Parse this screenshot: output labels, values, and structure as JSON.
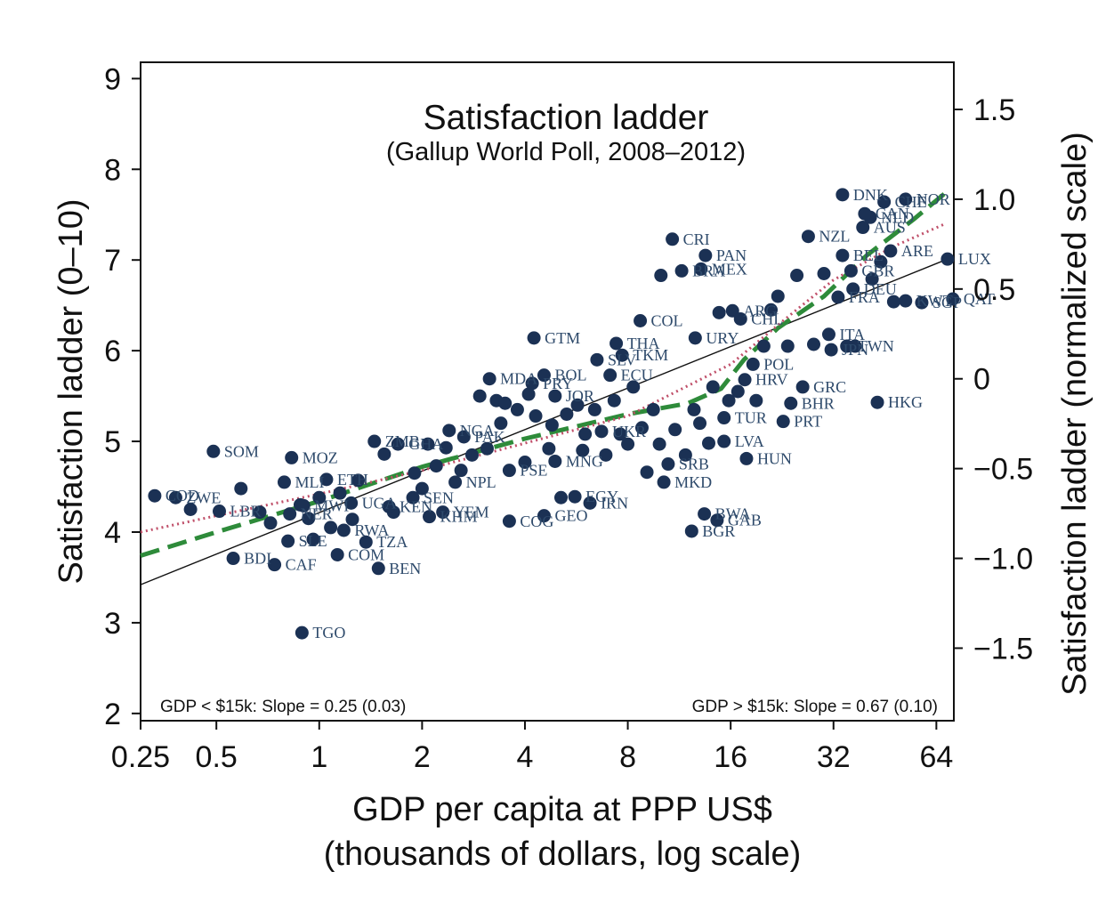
{
  "chart_data": {
    "type": "scatter",
    "title": "Satisfaction ladder",
    "subtitle": "(Gallup World Poll, 2008–2012)",
    "xlabel": "GDP per capita at PPP US$",
    "xlabel2": "(thousands of dollars, log scale)",
    "ylabel": "Satisfaction ladder (0–10)",
    "y2label": "Satisfaction ladder (normalized scale)",
    "x_scale": "log2",
    "xlim": [
      0.3,
      72
    ],
    "ylim": [
      1.92,
      9.18
    ],
    "x_ticks": [
      {
        "value": 0.25,
        "label": "0.25"
      },
      {
        "value": 0.5,
        "label": "0.5"
      },
      {
        "value": 1,
        "label": "1"
      },
      {
        "value": 2,
        "label": "2"
      },
      {
        "value": 4,
        "label": "4"
      },
      {
        "value": 8,
        "label": "8"
      },
      {
        "value": 16,
        "label": "16"
      },
      {
        "value": 32,
        "label": "32"
      },
      {
        "value": 64,
        "label": "64"
      }
    ],
    "y_ticks": [
      {
        "value": 2,
        "label": "2"
      },
      {
        "value": 3,
        "label": "3"
      },
      {
        "value": 4,
        "label": "4"
      },
      {
        "value": 5,
        "label": "5"
      },
      {
        "value": 6,
        "label": "6"
      },
      {
        "value": 7,
        "label": "7"
      },
      {
        "value": 8,
        "label": "8"
      },
      {
        "value": 9,
        "label": "9"
      }
    ],
    "y2_ticks": [
      {
        "ladder": 2.72,
        "label": "−1.5"
      },
      {
        "ladder": 3.71,
        "label": "−1.0"
      },
      {
        "ladder": 4.7,
        "label": "−0.5"
      },
      {
        "ladder": 5.69,
        "label": "0"
      },
      {
        "ladder": 6.68,
        "label": "0.5"
      },
      {
        "ladder": 7.67,
        "label": "1.0"
      },
      {
        "ladder": 8.66,
        "label": "1.5"
      }
    ],
    "grid": false,
    "legend": "none",
    "colors": {
      "points": "#1b3154",
      "labels": "#2e4a6b",
      "fit_linear": "#111111",
      "fit_dashed": "#2e8b3a",
      "fit_dotted": "#c0506a"
    },
    "annotations": [
      {
        "text": "GDP < $15k: Slope = 0.25 (0.03)",
        "position": "bottom-left"
      },
      {
        "text": "GDP > $15k: Slope = 0.67 (0.10)",
        "position": "bottom-right"
      }
    ],
    "labeled_points": [
      {
        "label": "COD",
        "x": 0.33,
        "y": 4.4
      },
      {
        "label": "ZWE",
        "x": 0.38,
        "y": 4.38
      },
      {
        "label": "SOM",
        "x": 0.49,
        "y": 4.89
      },
      {
        "label": "LBR",
        "x": 0.51,
        "y": 4.23
      },
      {
        "label": "BDI",
        "x": 0.56,
        "y": 3.71
      },
      {
        "label": "MOZ",
        "x": 0.83,
        "y": 4.82
      },
      {
        "label": "MLI",
        "x": 0.79,
        "y": 4.55
      },
      {
        "label": "ETH",
        "x": 1.05,
        "y": 4.58
      },
      {
        "label": "CAF",
        "x": 0.74,
        "y": 3.64
      },
      {
        "label": "SLE",
        "x": 0.81,
        "y": 3.9
      },
      {
        "label": "COM",
        "x": 1.13,
        "y": 3.75
      },
      {
        "label": "TZA",
        "x": 1.37,
        "y": 3.89
      },
      {
        "label": "BEN",
        "x": 1.49,
        "y": 3.6
      },
      {
        "label": "TGO",
        "x": 0.89,
        "y": 2.89
      },
      {
        "label": "RWA",
        "x": 1.18,
        "y": 4.02
      },
      {
        "label": "NER",
        "x": 0.82,
        "y": 4.2
      },
      {
        "label": "MWI",
        "x": 0.9,
        "y": 4.29
      },
      {
        "label": "UGA",
        "x": 1.24,
        "y": 4.32
      },
      {
        "label": "ZMB",
        "x": 1.45,
        "y": 5.0
      },
      {
        "label": "KEN",
        "x": 1.6,
        "y": 4.28
      },
      {
        "label": "GHA",
        "x": 1.7,
        "y": 4.97
      },
      {
        "label": "NGA",
        "x": 2.4,
        "y": 5.12
      },
      {
        "label": "PAK",
        "x": 2.65,
        "y": 5.05
      },
      {
        "label": "SEN",
        "x": 1.88,
        "y": 4.38
      },
      {
        "label": "YEM",
        "x": 2.3,
        "y": 4.22
      },
      {
        "label": "KHM",
        "x": 2.1,
        "y": 4.17
      },
      {
        "label": "NPL",
        "x": 2.5,
        "y": 4.55
      },
      {
        "label": "MDA",
        "x": 3.15,
        "y": 5.69
      },
      {
        "label": "PSE",
        "x": 3.6,
        "y": 4.68
      },
      {
        "label": "JOR",
        "x": 4.9,
        "y": 5.5
      },
      {
        "label": "BOL",
        "x": 4.55,
        "y": 5.73
      },
      {
        "label": "PRY",
        "x": 4.2,
        "y": 5.64
      },
      {
        "label": "GTM",
        "x": 4.25,
        "y": 6.14
      },
      {
        "label": "MNG",
        "x": 4.9,
        "y": 4.78
      },
      {
        "label": "EGY",
        "x": 5.6,
        "y": 4.39
      },
      {
        "label": "IRN",
        "x": 6.2,
        "y": 4.32
      },
      {
        "label": "GEO",
        "x": 4.55,
        "y": 4.18
      },
      {
        "label": "COG",
        "x": 3.6,
        "y": 4.12
      },
      {
        "label": "THA",
        "x": 7.4,
        "y": 6.08
      },
      {
        "label": "SLV",
        "x": 6.5,
        "y": 5.9
      },
      {
        "label": "TKM",
        "x": 7.7,
        "y": 5.95
      },
      {
        "label": "ECU",
        "x": 7.1,
        "y": 5.73
      },
      {
        "label": "UKR",
        "x": 6.7,
        "y": 5.11
      },
      {
        "label": "COL",
        "x": 8.7,
        "y": 6.33
      },
      {
        "label": "CRI",
        "x": 10.8,
        "y": 7.23
      },
      {
        "label": "PAN",
        "x": 13.5,
        "y": 7.05
      },
      {
        "label": "MEX",
        "x": 13.1,
        "y": 6.9
      },
      {
        "label": "BRA",
        "x": 11.5,
        "y": 6.88
      },
      {
        "label": "URY",
        "x": 12.6,
        "y": 6.14
      },
      {
        "label": "MKD",
        "x": 10.2,
        "y": 4.55
      },
      {
        "label": "SRB",
        "x": 10.5,
        "y": 4.75
      },
      {
        "label": "BWA",
        "x": 13.4,
        "y": 4.2
      },
      {
        "label": "GAB",
        "x": 14.6,
        "y": 4.13
      },
      {
        "label": "BGR",
        "x": 12.3,
        "y": 4.01
      },
      {
        "label": "LVA",
        "x": 15.3,
        "y": 5.0
      },
      {
        "label": "HUN",
        "x": 17.8,
        "y": 4.81
      },
      {
        "label": "TUR",
        "x": 15.3,
        "y": 5.26
      },
      {
        "label": "POL",
        "x": 18.6,
        "y": 5.85
      },
      {
        "label": "HRV",
        "x": 17.6,
        "y": 5.68
      },
      {
        "label": "GRC",
        "x": 26.0,
        "y": 5.6
      },
      {
        "label": "BHR",
        "x": 24.0,
        "y": 5.42
      },
      {
        "label": "PRT",
        "x": 22.8,
        "y": 5.22
      },
      {
        "label": "ARG",
        "x": 16.2,
        "y": 6.44
      },
      {
        "label": "CHL",
        "x": 17.1,
        "y": 6.35
      },
      {
        "label": "ITA",
        "x": 31.0,
        "y": 6.18
      },
      {
        "label": "JPN",
        "x": 31.5,
        "y": 6.01
      },
      {
        "label": "TWN",
        "x": 35.0,
        "y": 6.05
      },
      {
        "label": "HKG",
        "x": 43.0,
        "y": 5.43
      },
      {
        "label": "QAT",
        "x": 71.5,
        "y": 6.57
      },
      {
        "label": "LUX",
        "x": 69.0,
        "y": 7.01
      },
      {
        "label": "SGP",
        "x": 58.0,
        "y": 6.53
      },
      {
        "label": "KWT",
        "x": 52.0,
        "y": 6.55
      },
      {
        "label": "DEU",
        "x": 36.5,
        "y": 6.68
      },
      {
        "label": "FRA",
        "x": 33.0,
        "y": 6.59
      },
      {
        "label": "GBR",
        "x": 36.0,
        "y": 6.88
      },
      {
        "label": "ARE",
        "x": 47.0,
        "y": 7.1
      },
      {
        "label": "BEL",
        "x": 34.0,
        "y": 7.05
      },
      {
        "label": "NZL",
        "x": 27.0,
        "y": 7.26
      },
      {
        "label": "AUS",
        "x": 39.0,
        "y": 7.36
      },
      {
        "label": "NLD",
        "x": 41.0,
        "y": 7.47
      },
      {
        "label": "CAN",
        "x": 39.5,
        "y": 7.51
      },
      {
        "label": "DNK",
        "x": 34.0,
        "y": 7.72
      },
      {
        "label": "NOR",
        "x": 52.0,
        "y": 7.67
      },
      {
        "label": "CHE",
        "x": 45.0,
        "y": 7.64
      }
    ],
    "unlabeled_points": [
      {
        "x": 0.42,
        "y": 4.25
      },
      {
        "x": 0.59,
        "y": 4.48
      },
      {
        "x": 0.67,
        "y": 4.22
      },
      {
        "x": 0.72,
        "y": 4.1
      },
      {
        "x": 0.88,
        "y": 4.3
      },
      {
        "x": 0.93,
        "y": 4.15
      },
      {
        "x": 0.96,
        "y": 3.92
      },
      {
        "x": 1.0,
        "y": 4.38
      },
      {
        "x": 1.08,
        "y": 4.05
      },
      {
        "x": 1.15,
        "y": 4.43
      },
      {
        "x": 1.25,
        "y": 4.14
      },
      {
        "x": 1.3,
        "y": 4.57
      },
      {
        "x": 1.55,
        "y": 4.86
      },
      {
        "x": 1.65,
        "y": 4.22
      },
      {
        "x": 1.9,
        "y": 4.65
      },
      {
        "x": 2.0,
        "y": 4.48
      },
      {
        "x": 2.08,
        "y": 4.97
      },
      {
        "x": 2.2,
        "y": 4.73
      },
      {
        "x": 2.35,
        "y": 4.93
      },
      {
        "x": 2.6,
        "y": 4.68
      },
      {
        "x": 2.8,
        "y": 4.85
      },
      {
        "x": 2.95,
        "y": 5.5
      },
      {
        "x": 3.1,
        "y": 4.92
      },
      {
        "x": 3.3,
        "y": 5.45
      },
      {
        "x": 3.4,
        "y": 5.2
      },
      {
        "x": 3.5,
        "y": 5.42
      },
      {
        "x": 3.8,
        "y": 5.35
      },
      {
        "x": 4.0,
        "y": 4.77
      },
      {
        "x": 4.1,
        "y": 5.52
      },
      {
        "x": 4.3,
        "y": 5.28
      },
      {
        "x": 4.7,
        "y": 4.92
      },
      {
        "x": 4.8,
        "y": 5.18
      },
      {
        "x": 5.1,
        "y": 4.38
      },
      {
        "x": 5.3,
        "y": 5.3
      },
      {
        "x": 5.7,
        "y": 5.4
      },
      {
        "x": 5.9,
        "y": 4.9
      },
      {
        "x": 6.0,
        "y": 5.08
      },
      {
        "x": 6.4,
        "y": 5.35
      },
      {
        "x": 6.9,
        "y": 4.85
      },
      {
        "x": 7.3,
        "y": 5.45
      },
      {
        "x": 7.6,
        "y": 5.08
      },
      {
        "x": 8.0,
        "y": 4.97
      },
      {
        "x": 8.3,
        "y": 5.6
      },
      {
        "x": 8.8,
        "y": 5.15
      },
      {
        "x": 9.1,
        "y": 4.66
      },
      {
        "x": 9.5,
        "y": 5.35
      },
      {
        "x": 9.9,
        "y": 4.97
      },
      {
        "x": 10.0,
        "y": 6.83
      },
      {
        "x": 11.0,
        "y": 5.13
      },
      {
        "x": 11.8,
        "y": 4.85
      },
      {
        "x": 12.5,
        "y": 5.35
      },
      {
        "x": 13.0,
        "y": 5.2
      },
      {
        "x": 13.8,
        "y": 4.98
      },
      {
        "x": 14.2,
        "y": 5.6
      },
      {
        "x": 14.8,
        "y": 6.42
      },
      {
        "x": 15.8,
        "y": 5.45
      },
      {
        "x": 16.8,
        "y": 5.55
      },
      {
        "x": 19.0,
        "y": 5.45
      },
      {
        "x": 20.0,
        "y": 6.05
      },
      {
        "x": 21.0,
        "y": 6.45
      },
      {
        "x": 22.0,
        "y": 6.6
      },
      {
        "x": 23.5,
        "y": 6.05
      },
      {
        "x": 25.0,
        "y": 6.83
      },
      {
        "x": 28.0,
        "y": 6.07
      },
      {
        "x": 30.0,
        "y": 6.85
      },
      {
        "x": 37.0,
        "y": 6.05
      },
      {
        "x": 41.5,
        "y": 6.79
      },
      {
        "x": 44.0,
        "y": 6.98
      },
      {
        "x": 48.0,
        "y": 6.54
      }
    ],
    "fit_lines": [
      {
        "style": "solid",
        "points": [
          [
            0.3,
            3.42
          ],
          [
            70.0,
            7.02
          ]
        ]
      },
      {
        "style": "dashed",
        "points": [
          [
            0.3,
            3.74
          ],
          [
            0.5,
            4.0
          ],
          [
            1.0,
            4.34
          ],
          [
            2.0,
            4.72
          ],
          [
            4.0,
            5.03
          ],
          [
            8.0,
            5.3
          ],
          [
            12.0,
            5.42
          ],
          [
            15.0,
            5.58
          ],
          [
            17.5,
            5.9
          ],
          [
            22.0,
            6.25
          ],
          [
            30.0,
            6.6
          ],
          [
            40.0,
            7.05
          ],
          [
            55.0,
            7.45
          ],
          [
            68.0,
            7.74
          ]
        ]
      },
      {
        "style": "dotted",
        "points": [
          [
            0.3,
            4.0
          ],
          [
            0.5,
            4.18
          ],
          [
            1.0,
            4.42
          ],
          [
            2.0,
            4.68
          ],
          [
            4.0,
            4.98
          ],
          [
            8.0,
            5.28
          ],
          [
            16.0,
            5.85
          ],
          [
            24.0,
            6.4
          ],
          [
            32.0,
            6.78
          ],
          [
            48.0,
            7.15
          ],
          [
            68.0,
            7.4
          ]
        ]
      }
    ]
  }
}
